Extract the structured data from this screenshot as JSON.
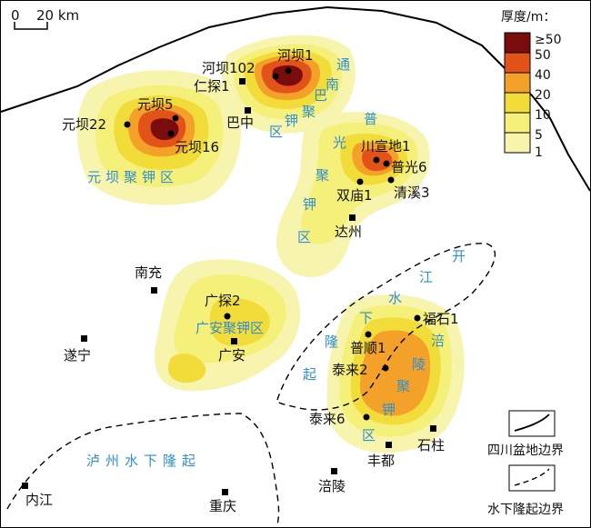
{
  "scale_bar": {
    "zero": "0",
    "label": "20 km"
  },
  "legend": {
    "title": "厚度/m：",
    "classes": [
      {
        "label": "≥50",
        "color": "#7a0c0c"
      },
      {
        "label": "50",
        "color": "#e2531a"
      },
      {
        "label": "40",
        "color": "#f4a12a"
      },
      {
        "label": "20",
        "color": "#f2dc3a"
      },
      {
        "label": "10",
        "color": "#f5f07a"
      },
      {
        "label": "5",
        "color": "#f7f4ae"
      },
      {
        "label": "1",
        "color": "#f7f4ae"
      }
    ],
    "basin_boundary": "四川盆地边界",
    "uplift_boundary": "水下隆起边界"
  },
  "wells": [
    {
      "name": "河坝102",
      "id": "w1"
    },
    {
      "name": "河坝1",
      "id": "w2"
    },
    {
      "name": "仁探1",
      "id": "w3"
    },
    {
      "name": "元坝5",
      "id": "w4"
    },
    {
      "name": "元坝22",
      "id": "w5"
    },
    {
      "name": "元坝16",
      "id": "w6"
    },
    {
      "name": "川宣地1",
      "id": "w7"
    },
    {
      "name": "普光6",
      "id": "w8"
    },
    {
      "name": "双庙1",
      "id": "w9"
    },
    {
      "name": "清溪3",
      "id": "w10"
    },
    {
      "name": "广探2",
      "id": "w11"
    },
    {
      "name": "福石1",
      "id": "w12"
    },
    {
      "name": "普顺1",
      "id": "w13"
    },
    {
      "name": "泰来2",
      "id": "w14"
    },
    {
      "name": "泰来6",
      "id": "w15"
    }
  ],
  "cities": [
    "巴中",
    "达州",
    "南充",
    "遂宁",
    "广安",
    "石柱",
    "丰都",
    "涪陵",
    "内江",
    "重庆"
  ],
  "zones": {
    "yuanba": "元坝聚钾区",
    "tongnanba": [
      "通",
      "南",
      "巴",
      "聚",
      "钾",
      "区"
    ],
    "puguang": [
      "普",
      "光",
      "聚",
      "钾",
      "区"
    ],
    "guangan": "广安聚钾区",
    "kaijiang": [
      "开",
      "江",
      "水",
      "下",
      "隆",
      "起"
    ],
    "fuling": [
      "涪",
      "陵",
      "聚",
      "钾",
      "区"
    ],
    "luzhou": "泸州水下隆起"
  }
}
